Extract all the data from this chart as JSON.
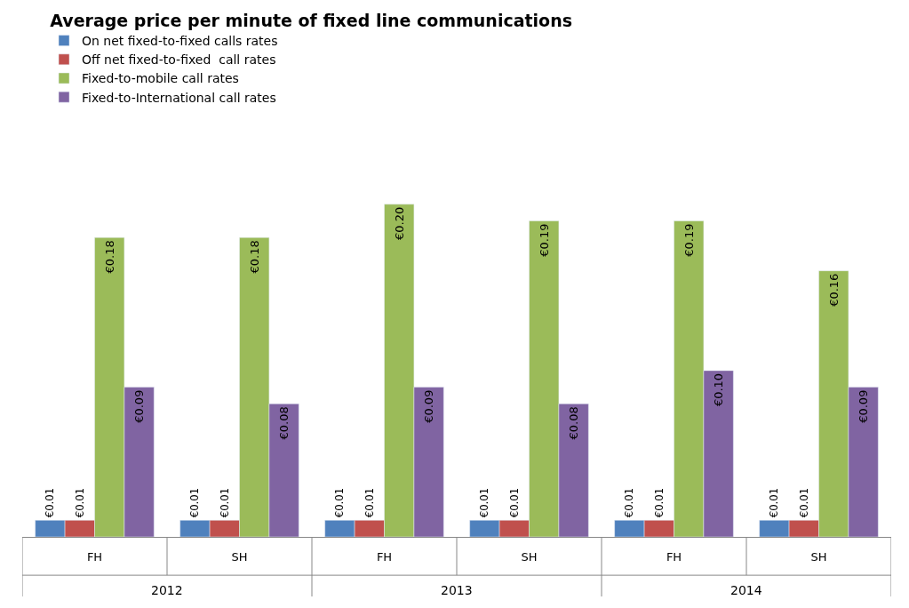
{
  "chart_data": {
    "type": "bar",
    "title": "Average price per minute of fixed line communications",
    "categories": [
      "FH",
      "SH",
      "FH",
      "SH",
      "FH",
      "SH"
    ],
    "annotations": [
      "2012",
      "2013",
      "2014"
    ],
    "series": [
      {
        "name": "On net fixed-to-fixed calls rates",
        "color": "#4f81bd",
        "values": [
          0.01,
          0.01,
          0.01,
          0.01,
          0.01,
          0.01
        ],
        "value_labels": [
          "€0.01",
          "€0.01",
          "€0.01",
          "€0.01",
          "€0.01",
          "€0.01"
        ]
      },
      {
        "name": "Off net fixed-to-fixed  call rates",
        "color": "#c0504d",
        "values": [
          0.01,
          0.01,
          0.01,
          0.01,
          0.01,
          0.01
        ],
        "value_labels": [
          "€0.01",
          "€0.01",
          "€0.01",
          "€0.01",
          "€0.01",
          "€0.01"
        ]
      },
      {
        "name": "Fixed-to-mobile call rates",
        "color": "#9bbb59",
        "values": [
          0.18,
          0.18,
          0.2,
          0.19,
          0.19,
          0.16
        ],
        "value_labels": [
          "€0.18",
          "€0.18",
          "€0.20",
          "€0.19",
          "€0.19",
          "€0.16"
        ]
      },
      {
        "name": "Fixed-to-International call rates",
        "color": "#8064a2",
        "values": [
          0.09,
          0.08,
          0.09,
          0.08,
          0.1,
          0.09
        ],
        "value_labels": [
          "€0.09",
          "€0.08",
          "€0.09",
          "€0.08",
          "€0.10",
          "€0.09"
        ]
      }
    ],
    "legend": "top"
  }
}
